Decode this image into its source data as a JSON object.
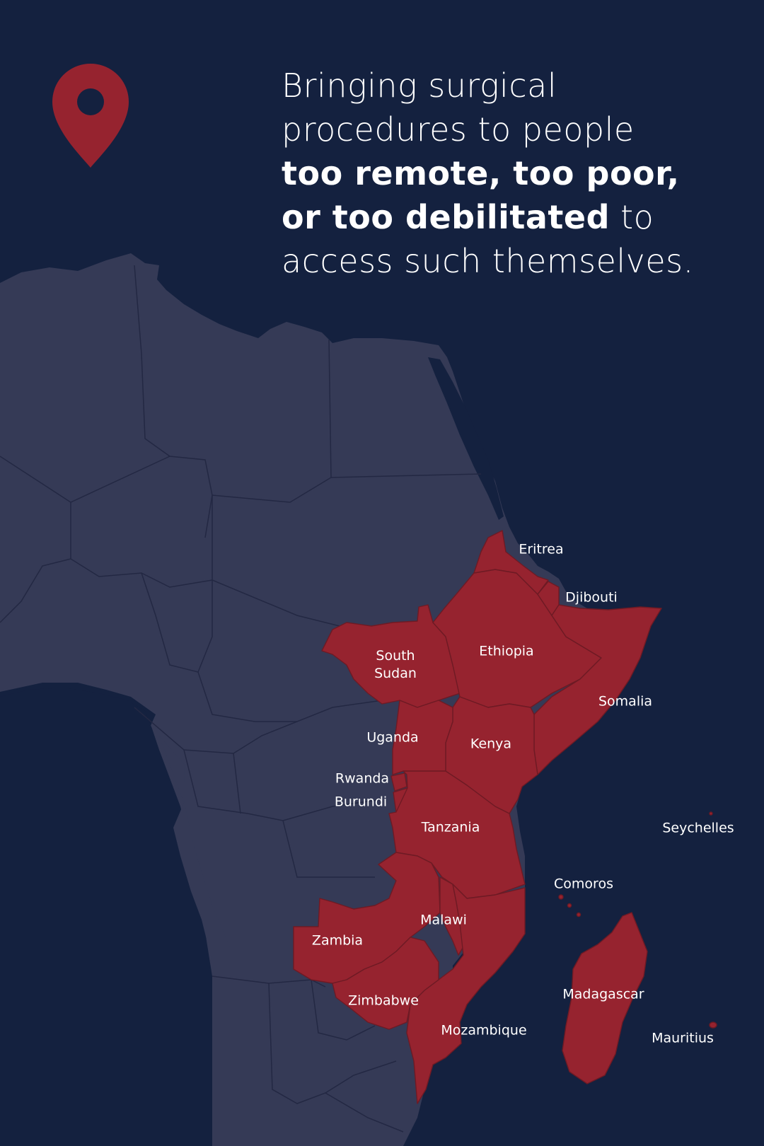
{
  "headline": {
    "line1": "Bringing surgical",
    "line2": "procedures to people",
    "bold1": "too remote, too poor,",
    "bold2": "or too debilitated",
    "line4_tail": " to",
    "line5": "access such themselves."
  },
  "labels": {
    "eritrea": "Eritrea",
    "djibouti": "Djibouti",
    "south_sudan_1": "South",
    "south_sudan_2": "Sudan",
    "ethiopia": "Ethiopia",
    "somalia": "Somalia",
    "uganda": "Uganda",
    "kenya": "Kenya",
    "rwanda": "Rwanda",
    "burundi": "Burundi",
    "tanzania": "Tanzania",
    "seychelles": "Seychelles",
    "comoros": "Comoros",
    "malawi": "Malawi",
    "zambia": "Zambia",
    "madagascar": "Madagascar",
    "zimbabwe": "Zimbabwe",
    "mozambique": "Mozambique",
    "mauritius": "Mauritius"
  },
  "colors": {
    "ocean": "#14213f",
    "land": "#353a56",
    "highlight": "#96232f",
    "border": "#232843",
    "text": "#ffffff"
  },
  "icon": "location-pin-icon"
}
